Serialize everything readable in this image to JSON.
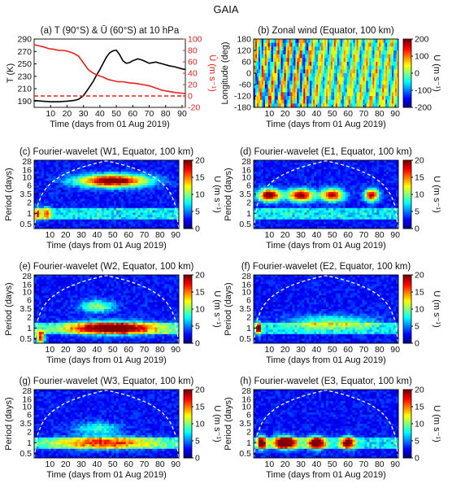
{
  "figure_title": "GAIA",
  "chart_data": [
    {
      "id": "a",
      "type": "line",
      "title": "(a) T (90°S) & Ū (60°S) at 10 hPa",
      "xlabel": "Time (days from 01 Aug 2019)",
      "ylabel_left": "T (K)",
      "ylabel_right": "Ū (m s⁻¹)",
      "xlim": [
        0,
        92
      ],
      "ylim_left": [
        180,
        290
      ],
      "ylim_right": [
        -20,
        100
      ],
      "xticks": [
        10,
        20,
        30,
        40,
        50,
        60,
        70,
        80,
        90
      ],
      "yticks_left": [
        190,
        210,
        230,
        250,
        270,
        290
      ],
      "yticks_right": [
        -20,
        0,
        20,
        40,
        60,
        80,
        100
      ],
      "series": [
        {
          "axis": "left",
          "color": "#000000",
          "x": [
            0,
            5,
            10,
            15,
            20,
            24,
            27,
            30,
            33,
            36,
            38,
            40,
            42,
            44,
            46,
            48,
            50,
            52,
            54,
            56,
            58,
            60,
            63,
            66,
            70,
            74,
            78,
            82,
            86,
            90,
            92
          ],
          "y": [
            191,
            190,
            189,
            189,
            190,
            191,
            193,
            199,
            210,
            222,
            232,
            241,
            251,
            261,
            268,
            271,
            272,
            265,
            255,
            251,
            252,
            255,
            258,
            256,
            251,
            253,
            250,
            247,
            245,
            242,
            241
          ]
        },
        {
          "axis": "right",
          "color": "#e8201c",
          "x": [
            0,
            3,
            6,
            9,
            12,
            15,
            18,
            21,
            24,
            27,
            30,
            33,
            36,
            39,
            42,
            45,
            48,
            51,
            54,
            58,
            62,
            66,
            70,
            74,
            78,
            82,
            86,
            90,
            92
          ],
          "y": [
            90,
            88,
            86,
            83,
            82,
            80,
            80,
            78,
            75,
            70,
            58,
            46,
            40,
            36,
            33,
            29,
            27,
            25,
            25,
            23,
            22,
            20,
            18,
            14,
            10,
            8,
            6,
            5,
            4
          ]
        },
        {
          "axis": "right",
          "color": "#e8201c",
          "dashed": true,
          "x": [
            0,
            92
          ],
          "y": [
            0,
            0
          ]
        }
      ]
    },
    {
      "id": "b",
      "type": "heatmap",
      "title": "(b) Zonal wind (Equator, 100 km)",
      "xlabel": "Time (days from 01 Aug 2019)",
      "ylabel": "Longitude (deg)",
      "colorbar_label": "U (m s⁻¹)",
      "xlim": [
        0,
        92
      ],
      "ylim": [
        -180,
        180
      ],
      "clim": [
        -200,
        200
      ],
      "xticks": [
        10,
        20,
        30,
        40,
        50,
        60,
        70,
        80,
        90
      ],
      "yticks": [
        -180,
        -120,
        -60,
        0,
        60,
        120,
        180
      ],
      "cticks": [
        -200,
        -100,
        0,
        100,
        200
      ]
    },
    {
      "id": "c",
      "type": "heatmap",
      "title": "(c) Fourier-wavelet (W1, Equator, 100 km)",
      "xlabel": "Time (days from 01 Aug 2019)",
      "ylabel": "Period (days)",
      "colorbar_label": "U (m s⁻¹)",
      "xlim": [
        0,
        92
      ],
      "clim": [
        0,
        20
      ],
      "xticks": [
        10,
        20,
        30,
        40,
        50,
        60,
        70,
        80,
        90
      ],
      "yticks": [
        0.5,
        1,
        2,
        3.5,
        6,
        10,
        16,
        28
      ],
      "cticks": [
        0,
        5,
        10,
        15,
        20
      ],
      "features": [
        {
          "center_day": 50,
          "period": 8,
          "width_days": 25,
          "amplitude": 19
        },
        {
          "center_day": 2,
          "period": 1,
          "width_days": 3,
          "amplitude": 10
        },
        {
          "center_day": 8,
          "period": 1,
          "width_days": 3,
          "amplitude": 9
        }
      ]
    },
    {
      "id": "d",
      "type": "heatmap",
      "title": "(d) Fourier-wavelet (E1, Equator, 100 km)",
      "xlabel": "Time (days from 01 Aug 2019)",
      "ylabel": "Period (days)",
      "colorbar_label": "U (m s⁻¹)",
      "xlim": [
        0,
        92
      ],
      "clim": [
        0,
        20
      ],
      "xticks": [
        10,
        20,
        30,
        40,
        50,
        60,
        70,
        80,
        90
      ],
      "yticks": [
        0.5,
        1,
        2,
        3.5,
        6,
        10,
        16,
        28
      ],
      "cticks": [
        0,
        5,
        10,
        15,
        20
      ],
      "features": [
        {
          "center_day": 10,
          "period": 3.2,
          "width_days": 8,
          "amplitude": 19
        },
        {
          "center_day": 30,
          "period": 3.2,
          "width_days": 9,
          "amplitude": 18
        },
        {
          "center_day": 50,
          "period": 3.2,
          "width_days": 8,
          "amplitude": 17
        },
        {
          "center_day": 75,
          "period": 3.2,
          "width_days": 5,
          "amplitude": 17
        }
      ]
    },
    {
      "id": "e",
      "type": "heatmap",
      "title": "(e) Fourier-wavelet (W2, Equator, 100 km)",
      "xlabel": "Time (days from 01 Aug 2019)",
      "ylabel": "Period (days)",
      "colorbar_label": "U (m s⁻¹)",
      "xlim": [
        0,
        92
      ],
      "clim": [
        0,
        20
      ],
      "xticks": [
        10,
        20,
        30,
        40,
        50,
        60,
        70,
        80,
        90
      ],
      "yticks": [
        0.5,
        1,
        2,
        3.5,
        6,
        10,
        16,
        28
      ],
      "cticks": [
        0,
        5,
        10,
        15,
        20
      ],
      "features": [
        {
          "center_day": 4,
          "period": 0.55,
          "width_days": 3,
          "amplitude": 16
        },
        {
          "center_day": 50,
          "period": 1,
          "width_days": 30,
          "amplitude": 17
        },
        {
          "center_day": 40,
          "period": 4,
          "width_days": 12,
          "amplitude": 8
        }
      ]
    },
    {
      "id": "f",
      "type": "heatmap",
      "title": "(f) Fourier-wavelet (E2, Equator, 100 km)",
      "xlabel": "Time (days from 01 Aug 2019)",
      "ylabel": "Period (days)",
      "colorbar_label": "U (m s⁻¹)",
      "xlim": [
        0,
        92
      ],
      "clim": [
        0,
        20
      ],
      "xticks": [
        10,
        20,
        30,
        40,
        50,
        60,
        70,
        80,
        90
      ],
      "yticks": [
        0.5,
        1,
        2,
        3.5,
        6,
        10,
        16,
        28
      ],
      "cticks": [
        0,
        5,
        10,
        15,
        20
      ],
      "features": [
        {
          "center_day": 3,
          "period": 1,
          "width_days": 2,
          "amplitude": 15
        },
        {
          "center_day": 50,
          "period": 1.5,
          "width_days": 30,
          "amplitude": 7
        }
      ]
    },
    {
      "id": "g",
      "type": "heatmap",
      "title": "(g) Fourier-wavelet (W3, Equator, 100 km)",
      "xlabel": "Time (days from 01 Aug 2019)",
      "ylabel": "Period (days)",
      "colorbar_label": "U (m s⁻¹)",
      "xlim": [
        0,
        92
      ],
      "clim": [
        0,
        20
      ],
      "xticks": [
        10,
        20,
        30,
        40,
        50,
        60,
        70,
        80,
        90
      ],
      "yticks": [
        0.5,
        1,
        2,
        3.5,
        6,
        10,
        16,
        28
      ],
      "cticks": [
        0,
        5,
        10,
        15,
        20
      ],
      "features": [
        {
          "center_day": 45,
          "period": 1,
          "width_days": 35,
          "amplitude": 10
        },
        {
          "center_day": 40,
          "period": 2.5,
          "width_days": 15,
          "amplitude": 6
        }
      ]
    },
    {
      "id": "h",
      "type": "heatmap",
      "title": "(h) Fourier-wavelet (E3, Equator, 100 km)",
      "xlabel": "Time (days from 01 Aug 2019)",
      "ylabel": "Period (days)",
      "colorbar_label": "U (m s⁻¹)",
      "xlim": [
        0,
        92
      ],
      "clim": [
        0,
        20
      ],
      "xticks": [
        10,
        20,
        30,
        40,
        50,
        60,
        70,
        80,
        90
      ],
      "yticks": [
        0.5,
        1,
        2,
        3.5,
        6,
        10,
        16,
        28
      ],
      "cticks": [
        0,
        5,
        10,
        15,
        20
      ],
      "features": [
        {
          "center_day": 5,
          "period": 1,
          "width_days": 3,
          "amplitude": 18
        },
        {
          "center_day": 20,
          "period": 1,
          "width_days": 8,
          "amplitude": 19
        },
        {
          "center_day": 40,
          "period": 1,
          "width_days": 6,
          "amplitude": 18
        },
        {
          "center_day": 60,
          "period": 1,
          "width_days": 5,
          "amplitude": 15
        }
      ]
    }
  ]
}
